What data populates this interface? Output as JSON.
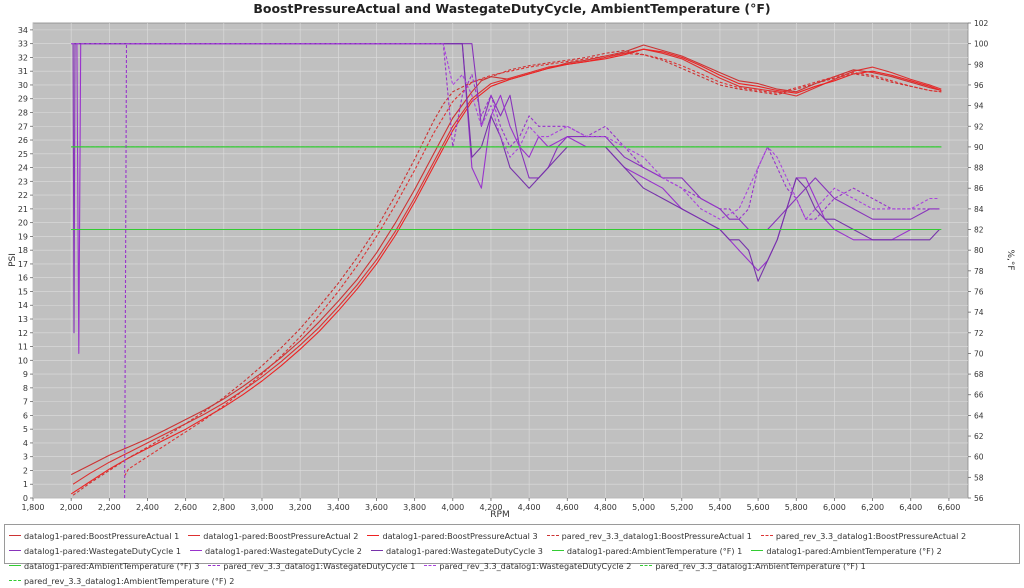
{
  "chart_data": {
    "type": "line",
    "title": "BoostPressureActual and WastegateDutyCycle, AmbientTemperature (°F)",
    "xlabel": "RPM",
    "ylabel": "PSI",
    "y2label": "%,°F",
    "xlim": [
      1800,
      6700
    ],
    "ylim": [
      0,
      34.5
    ],
    "y2lim": [
      56,
      102
    ],
    "xticks": [
      1800,
      2000,
      2200,
      2400,
      2600,
      2800,
      3000,
      3200,
      3400,
      3600,
      3800,
      4000,
      4200,
      4400,
      4600,
      4800,
      5000,
      5200,
      5400,
      5600,
      5800,
      6000,
      6200,
      6400,
      6600
    ],
    "xtick_labels": [
      "1,800",
      "2,000",
      "2,200",
      "2,400",
      "2,600",
      "2,800",
      "3,000",
      "3,200",
      "3,400",
      "3,600",
      "3,800",
      "4,000",
      "4,200",
      "4,400",
      "4,600",
      "4,800",
      "5,000",
      "5,200",
      "5,400",
      "5,600",
      "5,800",
      "6,000",
      "6,200",
      "6,400",
      "6,600"
    ],
    "yticks": [
      0,
      1,
      2,
      3,
      4,
      5,
      6,
      7,
      8,
      9,
      10,
      11,
      12,
      13,
      14,
      15,
      16,
      17,
      18,
      19,
      20,
      21,
      22,
      23,
      24,
      25,
      26,
      27,
      28,
      29,
      30,
      31,
      32,
      33,
      34
    ],
    "y2ticks": [
      56,
      58,
      60,
      62,
      64,
      66,
      68,
      70,
      72,
      74,
      76,
      78,
      80,
      82,
      84,
      86,
      88,
      90,
      92,
      94,
      96,
      98,
      100,
      102
    ],
    "grid": true,
    "legend_position": "bottom",
    "colors": {
      "boost": "#e03030",
      "wastegate": "#9933cc",
      "ambient": "#33cc33",
      "plot_bg": "#c0c0c0",
      "grid": "#dddddd"
    },
    "series": [
      {
        "name": "datalog1-pared:BoostPressureActual 1",
        "axis": "left",
        "color": "#cc3333",
        "dash": false,
        "x": [
          2000,
          2100,
          2200,
          2300,
          2400,
          2500,
          2600,
          2700,
          2800,
          2900,
          3000,
          3100,
          3200,
          3300,
          3400,
          3500,
          3600,
          3700,
          3800,
          3900,
          4000,
          4100,
          4150,
          4200,
          4300,
          4400,
          4500,
          4600,
          4700,
          4800,
          4900,
          5000,
          5100,
          5200,
          5300,
          5400,
          5500,
          5600,
          5700,
          5800,
          5900,
          6000,
          6100,
          6200,
          6300,
          6400,
          6500,
          6560
        ],
        "y": [
          1.7,
          2.4,
          3.1,
          3.7,
          4.3,
          5.0,
          5.7,
          6.4,
          7.2,
          8.1,
          9.1,
          10.2,
          11.4,
          12.8,
          14.3,
          15.9,
          17.8,
          20.0,
          22.4,
          25.0,
          27.6,
          29.5,
          30.3,
          30.6,
          30.4,
          30.8,
          31.2,
          31.6,
          31.8,
          32.1,
          32.4,
          32.9,
          32.5,
          32.1,
          31.5,
          30.9,
          30.3,
          30.1,
          29.7,
          29.5,
          30.1,
          30.6,
          31.1,
          30.9,
          30.6,
          30.2,
          29.8,
          29.6
        ]
      },
      {
        "name": "datalog1-pared:BoostPressureActual 2",
        "axis": "left",
        "color": "#dd3030",
        "dash": false,
        "x": [
          2010,
          2100,
          2200,
          2300,
          2400,
          2500,
          2600,
          2700,
          2800,
          2900,
          3000,
          3100,
          3200,
          3300,
          3400,
          3500,
          3600,
          3700,
          3800,
          3900,
          4000,
          4100,
          4200,
          4300,
          4400,
          4500,
          4600,
          4700,
          4800,
          4900,
          5000,
          5100,
          5200,
          5300,
          5400,
          5500,
          5600,
          5700,
          5800,
          5900,
          6000,
          6100,
          6200,
          6300,
          6400,
          6500,
          6560
        ],
        "y": [
          1.0,
          1.8,
          2.6,
          3.3,
          4.0,
          4.7,
          5.4,
          6.1,
          6.9,
          7.8,
          8.8,
          9.9,
          11.1,
          12.4,
          13.9,
          15.5,
          17.3,
          19.4,
          21.8,
          24.4,
          27.0,
          29.0,
          30.1,
          30.5,
          30.9,
          31.3,
          31.5,
          31.7,
          32.0,
          32.3,
          32.6,
          32.3,
          31.9,
          31.2,
          30.5,
          29.9,
          29.7,
          29.5,
          29.2,
          29.8,
          30.4,
          31.0,
          31.3,
          30.9,
          30.4,
          30.0,
          29.7
        ]
      },
      {
        "name": "datalog1-pared:BoostPressureActual 3",
        "axis": "left",
        "color": "#ee2222",
        "dash": false,
        "x": [
          2000,
          2100,
          2200,
          2300,
          2400,
          2500,
          2600,
          2700,
          2800,
          2900,
          3000,
          3100,
          3200,
          3300,
          3400,
          3500,
          3600,
          3700,
          3800,
          3900,
          4000,
          4100,
          4200,
          4300,
          4400,
          4500,
          4600,
          4700,
          4800,
          4900,
          5000,
          5100,
          5200,
          5300,
          5400,
          5500,
          5600,
          5700,
          5800,
          5900,
          6000,
          6100,
          6200,
          6300,
          6400,
          6500,
          6560
        ],
        "y": [
          0.3,
          1.2,
          2.1,
          2.9,
          3.6,
          4.3,
          5.0,
          5.8,
          6.6,
          7.5,
          8.5,
          9.6,
          10.8,
          12.1,
          13.6,
          15.2,
          17.0,
          19.1,
          21.5,
          24.1,
          26.7,
          28.8,
          29.9,
          30.4,
          30.8,
          31.2,
          31.5,
          31.7,
          31.9,
          32.2,
          32.6,
          32.4,
          32.0,
          31.4,
          30.7,
          30.1,
          29.9,
          29.6,
          29.4,
          29.9,
          30.3,
          30.8,
          31.0,
          30.7,
          30.3,
          29.9,
          29.6
        ]
      },
      {
        "name": "pared_rev_3.3_datalog1:BoostPressureActual 1",
        "axis": "left",
        "color": "#cc3333",
        "dash": true,
        "x": [
          2010,
          2100,
          2200,
          2300,
          2400,
          2500,
          2600,
          2700,
          2800,
          2900,
          3000,
          3100,
          3200,
          3300,
          3400,
          3500,
          3600,
          3700,
          3800,
          3900,
          3950,
          4000,
          4100,
          4200,
          4300,
          4400,
          4500,
          4600,
          4700,
          4800,
          4900,
          5000,
          5100,
          5200,
          5300,
          5400,
          5500,
          5600,
          5700,
          5800,
          5900,
          6000,
          6100,
          6200,
          6300,
          6400,
          6500,
          6560
        ],
        "y": [
          0.2,
          1.1,
          2.0,
          2.9,
          3.7,
          4.5,
          5.4,
          6.3,
          7.3,
          8.4,
          9.6,
          10.9,
          12.3,
          13.9,
          15.6,
          17.5,
          19.6,
          22.0,
          24.6,
          27.4,
          28.6,
          29.5,
          30.2,
          30.6,
          31.1,
          31.4,
          31.6,
          31.8,
          32.0,
          32.3,
          32.5,
          32.2,
          31.8,
          31.2,
          30.6,
          30.0,
          29.7,
          29.5,
          29.3,
          29.7,
          30.1,
          30.5,
          30.8,
          30.6,
          30.2,
          29.9,
          29.6,
          29.5
        ]
      },
      {
        "name": "pared_rev_3.3_datalog1:BoostPressureActual 2",
        "axis": "left",
        "color": "#dd3333",
        "dash": true,
        "x": [
          2280,
          2300,
          2400,
          2500,
          2600,
          2700,
          2800,
          2900,
          3000,
          3100,
          3200,
          3300,
          3400,
          3500,
          3600,
          3700,
          3800,
          3900,
          4000,
          4100,
          4200,
          4300,
          4400,
          4500,
          4600,
          4700,
          4800,
          4900,
          5000,
          5100,
          5200,
          5300,
          5400,
          5500,
          5600,
          5700,
          5800,
          5900,
          6000,
          6100,
          6200,
          6300,
          6400,
          6500,
          6560
        ],
        "y": [
          1.6,
          2.1,
          3.0,
          3.9,
          4.8,
          5.7,
          6.7,
          7.8,
          9.0,
          10.3,
          11.7,
          13.3,
          15.0,
          16.9,
          19.0,
          21.3,
          23.8,
          26.5,
          28.8,
          30.2,
          30.7,
          31.0,
          31.3,
          31.5,
          31.7,
          31.9,
          32.1,
          32.3,
          32.2,
          31.9,
          31.4,
          30.8,
          30.2,
          29.8,
          29.6,
          29.4,
          29.8,
          30.2,
          30.6,
          30.9,
          30.7,
          30.3,
          29.9,
          29.6,
          29.5
        ]
      },
      {
        "name": "datalog1-pared:WastegateDutyCycle 1",
        "axis": "right",
        "color": "#8833bb",
        "dash": false,
        "x": [
          2010,
          2015,
          2020,
          2030,
          2040,
          2060,
          2100,
          2500,
          3000,
          3500,
          3900,
          4050,
          4080,
          4100,
          4150,
          4200,
          4250,
          4300,
          4350,
          4400,
          4450,
          4500,
          4550,
          4600,
          4700,
          4800,
          4900,
          5000,
          5100,
          5200,
          5300,
          5400,
          5450,
          5500,
          5550,
          5600,
          5650,
          5700,
          5750,
          5800,
          5850,
          5900,
          5950,
          6000,
          6100,
          6200,
          6300,
          6400,
          6500,
          6550
        ],
        "y": [
          100,
          72,
          100,
          100,
          100,
          100,
          100,
          100,
          100,
          100,
          100,
          100,
          100,
          100,
          92,
          95,
          93,
          95,
          90,
          87,
          87,
          88,
          90,
          91,
          91,
          91,
          89,
          88,
          87,
          87,
          85,
          84,
          83,
          83,
          82,
          82,
          82,
          83,
          84,
          85,
          86,
          87,
          86,
          85,
          84,
          83,
          83,
          83,
          84,
          84
        ]
      },
      {
        "name": "datalog1-pared:WastegateDutyCycle 2",
        "axis": "right",
        "color": "#9933cc",
        "dash": false,
        "x": [
          2030,
          2040,
          2050,
          2060,
          2100,
          2500,
          3000,
          3500,
          3900,
          4050,
          4100,
          4150,
          4200,
          4250,
          4300,
          4350,
          4400,
          4450,
          4500,
          4600,
          4700,
          4800,
          4900,
          5000,
          5100,
          5200,
          5300,
          5400,
          5450,
          5500,
          5550,
          5600,
          5650,
          5700,
          5750,
          5800,
          5850,
          5900,
          5950,
          6000,
          6100,
          6200,
          6300,
          6400,
          6500,
          6550
        ],
        "y": [
          100,
          70,
          100,
          100,
          100,
          100,
          100,
          100,
          100,
          100,
          88,
          86,
          93,
          95,
          92,
          90,
          89,
          91,
          90,
          91,
          90,
          90,
          88,
          87,
          86,
          84,
          83,
          82,
          81,
          80,
          79,
          78,
          79,
          81,
          84,
          87,
          87,
          85,
          83,
          82,
          81,
          81,
          81,
          82,
          82,
          82
        ]
      },
      {
        "name": "datalog1-pared:WastegateDutyCycle 3",
        "axis": "right",
        "color": "#7733aa",
        "dash": false,
        "x": [
          2000,
          2100,
          2500,
          3000,
          3500,
          3900,
          4000,
          4050,
          4100,
          4150,
          4200,
          4250,
          4300,
          4350,
          4400,
          4450,
          4500,
          4550,
          4600,
          4700,
          4800,
          4900,
          5000,
          5100,
          5200,
          5300,
          5400,
          5450,
          5500,
          5550,
          5600,
          5650,
          5700,
          5750,
          5800,
          5850,
          5900,
          5950,
          6000,
          6100,
          6200,
          6300,
          6400,
          6500,
          6550
        ],
        "y": [
          100,
          100,
          100,
          100,
          100,
          100,
          100,
          100,
          89,
          90,
          93,
          91,
          88,
          87,
          86,
          87,
          88,
          89,
          90,
          90,
          90,
          88,
          86,
          85,
          84,
          83,
          82,
          81,
          81,
          80,
          77,
          79,
          81,
          84,
          87,
          86,
          84,
          83,
          83,
          82,
          81,
          81,
          81,
          81,
          82
        ]
      },
      {
        "name": "datalog1-pared:AmbientTemperature (°F) 1",
        "axis": "right",
        "color": "#33cc33",
        "dash": false,
        "x": [
          2000,
          6560
        ],
        "y": [
          90,
          90
        ]
      },
      {
        "name": "datalog1-pared:AmbientTemperature (°F) 2",
        "axis": "right",
        "color": "#33cc33",
        "dash": false,
        "x": [
          2000,
          6560
        ],
        "y": [
          90,
          90
        ]
      },
      {
        "name": "datalog1-pared:AmbientTemperature (°F) 3",
        "axis": "right",
        "color": "#33cc33",
        "dash": false,
        "x": [
          2000,
          6560
        ],
        "y": [
          82,
          82
        ]
      },
      {
        "name": "pared_rev_3.3_datalog1:WastegateDutyCycle 1",
        "axis": "right",
        "color": "#9933cc",
        "dash": true,
        "x": [
          2280,
          2290,
          2300,
          2500,
          3000,
          3500,
          3950,
          4000,
          4050,
          4100,
          4150,
          4200,
          4250,
          4300,
          4350,
          4400,
          4450,
          4500,
          4600,
          4700,
          4800,
          4900,
          5000,
          5100,
          5200,
          5300,
          5400,
          5450,
          5500,
          5550,
          5600,
          5650,
          5700,
          5750,
          5800,
          5850,
          5900,
          5950,
          6000,
          6100,
          6200,
          6300,
          6400,
          6500,
          6550
        ],
        "y": [
          56,
          100,
          100,
          100,
          100,
          100,
          100,
          90,
          95,
          97,
          93,
          95,
          92,
          90,
          91,
          93,
          92,
          92,
          92,
          91,
          92,
          90,
          88,
          87,
          86,
          85,
          84,
          84,
          83,
          84,
          88,
          90,
          88,
          86,
          85,
          83,
          83,
          84,
          85,
          86,
          85,
          84,
          84,
          84,
          84
        ]
      },
      {
        "name": "pared_rev_3.3_datalog1:WastegateDutyCycle 2",
        "axis": "right",
        "color": "#aa44dd",
        "dash": true,
        "x": [
          2000,
          2100,
          2500,
          3000,
          3500,
          3950,
          4000,
          4050,
          4100,
          4150,
          4200,
          4250,
          4300,
          4350,
          4400,
          4450,
          4500,
          4600,
          4700,
          4800,
          4900,
          5000,
          5100,
          5200,
          5300,
          5400,
          5500,
          5600,
          5650,
          5700,
          5750,
          5800,
          5850,
          5900,
          5950,
          6000,
          6100,
          6200,
          6300,
          6400,
          6500,
          6550
        ],
        "y": [
          100,
          100,
          100,
          100,
          100,
          100,
          96,
          97,
          95,
          92,
          94,
          91,
          89,
          90,
          92,
          91,
          91,
          92,
          91,
          91,
          90,
          89,
          87,
          86,
          84,
          83,
          84,
          88,
          90,
          89,
          87,
          85,
          83,
          84,
          85,
          86,
          85,
          84,
          84,
          84,
          85,
          85
        ]
      },
      {
        "name": "pared_rev_3.3_datalog1:AmbientTemperature (°F) 1",
        "axis": "right",
        "color": "#33cc33",
        "dash": true,
        "x": [
          2000,
          6560
        ],
        "y": [
          90,
          90
        ]
      },
      {
        "name": "pared_rev_3.3_datalog1:AmbientTemperature (°F) 2",
        "axis": "right",
        "color": "#33cc33",
        "dash": true,
        "x": [
          2000,
          6560
        ],
        "y": [
          82,
          82
        ]
      }
    ]
  }
}
